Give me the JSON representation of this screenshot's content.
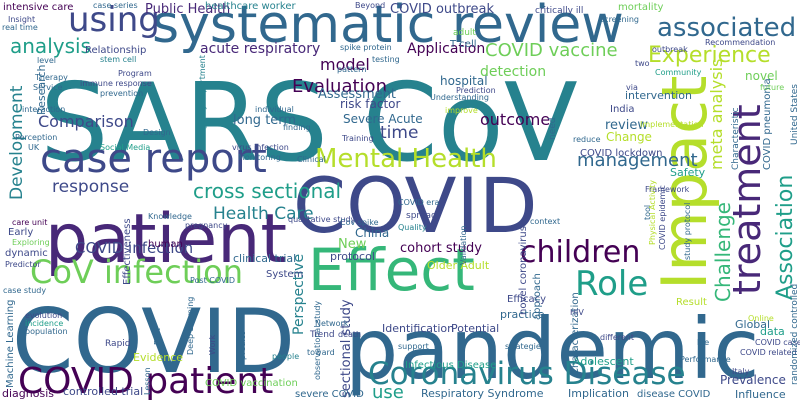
{
  "words": [
    "systematic review",
    "SARS CoV",
    "pandemic",
    "COVID",
    "COVID",
    "patient",
    "Impact",
    "Effect",
    "treatment",
    "case report",
    "Mental Health",
    "CoV infection",
    "COVID patient",
    "Coronavirus Disease",
    "Role",
    "children",
    "using",
    "associated",
    "Experience",
    "analysis",
    "COVID vaccine",
    "management",
    "Association",
    "Challenge",
    "meta analysis",
    "cross sectional",
    "Health Care",
    "response",
    "Development",
    "COVID infection",
    "Evaluation",
    "model",
    "outcome",
    "review",
    "time",
    "Comparison",
    "Assessment",
    "Perspective",
    "sectional study",
    "use",
    "cohort study",
    "detection",
    "Application",
    "acute respiratory",
    "long term",
    "COVID outbreak",
    "Public Health",
    "intensive care",
    "risk factor",
    "Severe Acute",
    "hospital",
    "China",
    "New",
    "protocol",
    "Older Adult",
    "clinical trial",
    "Identification",
    "Potential",
    "Efficacy",
    "practice",
    "Respiratory Syndrome",
    "Implication",
    "disease COVID",
    "Influence",
    "Prevalence",
    "Adolescent",
    "Infectious Disease",
    "COVID vaccination",
    "severe COVID",
    "controlled trial",
    "diagnosis",
    "Evidence",
    "Machine Learning",
    "human",
    "System",
    "Post COVID",
    "Safety",
    "Change",
    "India",
    "intervention",
    "novel",
    "COVID lockdown",
    "Global",
    "Italy",
    "data",
    "Result",
    "Trend",
    "Network",
    "Effectiveness",
    "Early",
    "dynamic",
    "Rapid",
    "people",
    "support",
    "Characterization",
    "approach",
    "Framework",
    "context",
    "spread",
    "Quality",
    "healthcare worker",
    "case series",
    "Beyond",
    "critically ill",
    "mortality",
    "adult",
    "T cell",
    "Insight",
    "real time",
    "Research",
    "Relationship",
    "Therapy",
    "stem cell",
    "immune response",
    "Service",
    "prevention",
    "Program",
    "level",
    "emergency department",
    "spike protein",
    "pattern",
    "testing",
    "Prediction",
    "Understanding",
    "individual",
    "improve",
    "finding",
    "Design",
    "Training",
    "Perception",
    "interaction",
    "UK",
    "Social Media",
    "virus infection",
    "Monitoring",
    "predict",
    "reduce",
    "need",
    "care unit",
    "Exploring",
    "Knowledge",
    "qualitative study",
    "Predictor",
    "case study",
    "evolution",
    "incidence",
    "population",
    "Lesson",
    "toward",
    "death",
    "strategie",
    "different",
    "life",
    "COVID case",
    "COVID related",
    "randomized controlled",
    "United States",
    "COVID pneumonia",
    "Characteristic",
    "Community",
    "outbreak",
    "Recommendation",
    "screening",
    "Implementation",
    "future",
    "two",
    "via",
    "Online",
    "Performance",
    "HIV",
    "Physical Activity",
    "Validation",
    "tool",
    "COVID era",
    "COVID epidemic",
    "study protocol",
    "novel coronavirus",
    "Cov spike",
    "pregnancy",
    "observational study",
    "Work",
    "First",
    "Deep Learning",
    "Clinical"
  ]
}
